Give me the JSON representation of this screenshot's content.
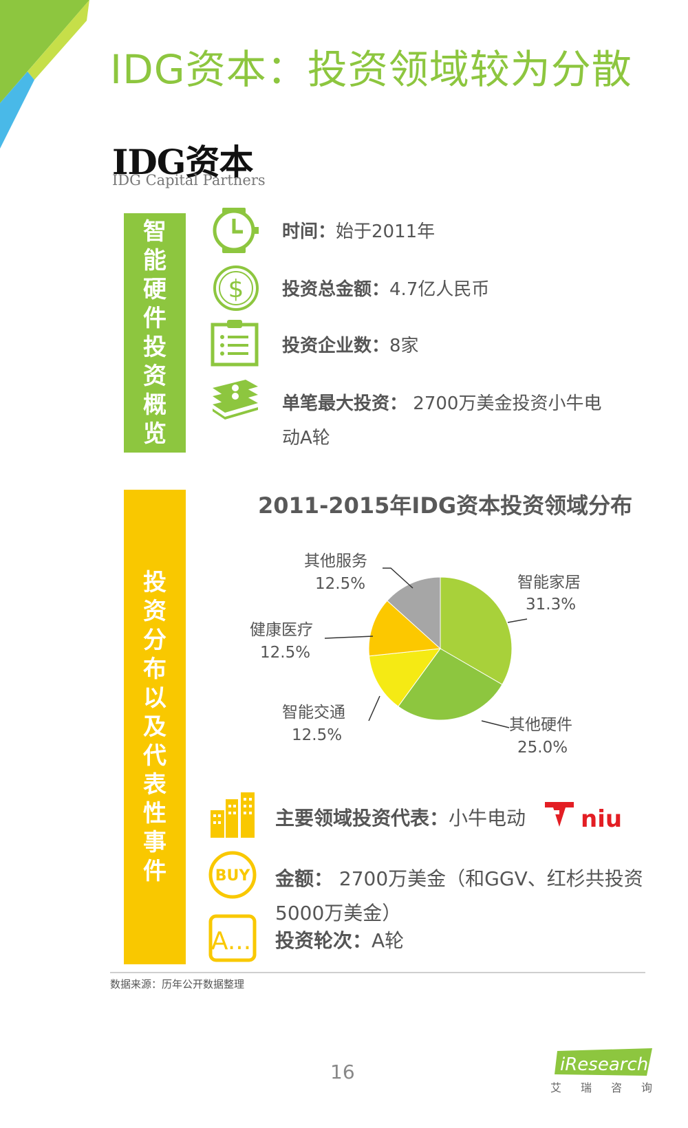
{
  "title": "IDG资本：投资领域较为分散",
  "logo": {
    "main": "IDG资本",
    "sub": "IDG Capital Partners"
  },
  "overview": {
    "bar_label": "智能硬件投资概览",
    "items": [
      {
        "icon": "clock-icon",
        "label": "时间：",
        "value": "始于2011年"
      },
      {
        "icon": "dollar-icon",
        "label": "投资总金额：",
        "value": "4.7亿人民币"
      },
      {
        "icon": "clipboard-icon",
        "label": "投资企业数：",
        "value": "8家"
      },
      {
        "icon": "money-stack-icon",
        "label": "单笔最大投资：",
        "value": " 2700万美金投资小牛电",
        "value2": "动A轮"
      }
    ]
  },
  "distribution": {
    "bar_label": "投资分布以及代表性事件",
    "main_label": "主要领域投资代表：",
    "main_value": "小牛电动",
    "niu_logo": "niu",
    "amount_label": "金额：",
    "amount_value": " 2700万美金（和GGV、红杉共投资",
    "amount_value2": "5000万美金）",
    "round_label": "投资轮次：",
    "round_value": "A轮",
    "buy_icon_text": "BUY",
    "a_icon_text": "A..."
  },
  "chart_data": {
    "type": "pie",
    "title": "2011-2015年IDG资本投资领域分布",
    "slices": [
      {
        "name": "智能家居",
        "value": 31.3,
        "label": "31.3%",
        "color": "#a8d13a"
      },
      {
        "name": "其他硬件",
        "value": 25.0,
        "label": "25.0%",
        "color": "#8dc63f"
      },
      {
        "name": "智能交通",
        "value": 12.5,
        "label": "12.5%",
        "color": "#f5ea14"
      },
      {
        "name": "健康医疗",
        "value": 12.5,
        "label": "12.5%",
        "color": "#fcc800"
      },
      {
        "name": "其他服务",
        "value": 12.5,
        "label": "12.5%",
        "color": "#a6a6a6"
      }
    ]
  },
  "colors": {
    "green": "#8dc63f",
    "yellow": "#f9c800",
    "blue": "#3fb6e8"
  },
  "footer": {
    "source": "数据来源：历年公开数据整理",
    "page": "16",
    "brand": "iResearch",
    "brand_sub": [
      "艾",
      "瑞",
      "咨",
      "询"
    ]
  }
}
